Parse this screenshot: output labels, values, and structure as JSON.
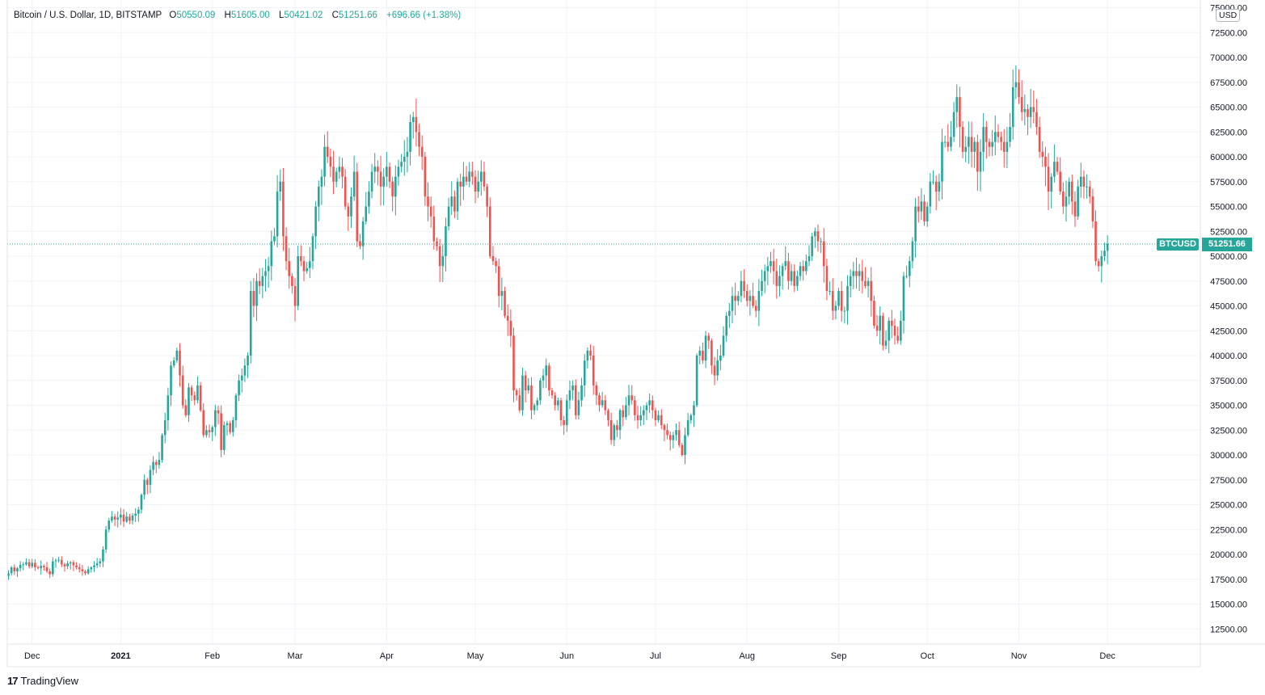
{
  "header": {
    "symbol": "Bitcoin / U.S. Dollar, 1D, BITSTAMP",
    "o_label": "O",
    "o": "50550.09",
    "h_label": "H",
    "h": "51605.00",
    "l_label": "L",
    "l": "50421.02",
    "c_label": "C",
    "c": "51251.66",
    "change": "+696.66 (+1.38%)"
  },
  "currency": "USD",
  "price_tag": {
    "symbol": "BTCUSD",
    "price": "51251.66"
  },
  "brand": {
    "logo": "17",
    "name": "TradingView"
  },
  "colors": {
    "up": "#26a69a",
    "down": "#ef5350",
    "grid": "#f0f3fa",
    "axis_text": "#131722"
  },
  "chart_data": {
    "type": "candlestick",
    "title": "Bitcoin / U.S. Dollar, 1D, BITSTAMP",
    "ylim": [
      10000,
      75000
    ],
    "grid": true,
    "y_ticks": [
      75000,
      72500,
      70000,
      67500,
      65000,
      62500,
      60000,
      57500,
      55000,
      52500,
      50000,
      47500,
      45000,
      42500,
      40000,
      37500,
      35000,
      32500,
      30000,
      27500,
      25000,
      22500,
      20000,
      17500,
      15000,
      12500
    ],
    "x_ticks": [
      {
        "label": "Dec",
        "day": 8
      },
      {
        "label": "2021",
        "day": 38
      },
      {
        "label": "Feb",
        "day": 69
      },
      {
        "label": "Mar",
        "day": 97
      },
      {
        "label": "Apr",
        "day": 128
      },
      {
        "label": "May",
        "day": 158
      },
      {
        "label": "Jun",
        "day": 189
      },
      {
        "label": "Jul",
        "day": 219
      },
      {
        "label": "Aug",
        "day": 250
      },
      {
        "label": "Sep",
        "day": 281
      },
      {
        "label": "Oct",
        "day": 311
      },
      {
        "label": "Nov",
        "day": 342
      },
      {
        "label": "Dec",
        "day": 372
      }
    ],
    "first_date": "2020-11-24",
    "last_close": 51251.66,
    "closes": [
      18100,
      18700,
      18300,
      18600,
      18950,
      19000,
      19200,
      18800,
      19150,
      18700,
      18600,
      18850,
      18700,
      18300,
      18000,
      19300,
      19400,
      19450,
      19000,
      18800,
      19100,
      19200,
      18900,
      18700,
      18500,
      18300,
      18100,
      18500,
      18700,
      18900,
      19100,
      19300,
      20500,
      22500,
      23400,
      23800,
      23500,
      23700,
      24000,
      23300,
      23800,
      23400,
      23900,
      24100,
      24500,
      26000,
      27500,
      27000,
      28500,
      29300,
      29000,
      29500,
      32000,
      33500,
      36000,
      39000,
      39500,
      40500,
      38000,
      35000,
      34000,
      36800,
      36000,
      35500,
      37000,
      34500,
      32000,
      32500,
      32300,
      32800,
      34500,
      34200,
      30500,
      33000,
      33200,
      32300,
      33500,
      36000,
      37500,
      38000,
      39000,
      40000,
      46500,
      45000,
      47500,
      47000,
      48000,
      48500,
      49000,
      51500,
      52000,
      56500,
      57500,
      52000,
      49500,
      48000,
      47000,
      45000,
      50000,
      49500,
      48500,
      48800,
      49500,
      52000,
      55000,
      57000,
      58000,
      61000,
      60000,
      59000,
      57500,
      58500,
      59000,
      58000,
      55000,
      54000,
      56000,
      58500,
      51500,
      51000,
      53500,
      55000,
      56500,
      58500,
      59000,
      58500,
      57000,
      58000,
      59000,
      57500,
      56000,
      58000,
      59000,
      59500,
      60000,
      60500,
      63500,
      64000,
      62500,
      61000,
      60000,
      56000,
      55000,
      54000,
      51500,
      51000,
      49000,
      50000,
      53000,
      55000,
      56000,
      54500,
      57500,
      57000,
      58000,
      57500,
      58500,
      58000,
      56500,
      57500,
      58500,
      57000,
      55000,
      50000,
      49500,
      49000,
      46000,
      46500,
      44000,
      43500,
      42000,
      36500,
      36000,
      34500,
      38000,
      36500,
      37000,
      34500,
      35000,
      35500,
      37500,
      38000,
      39000,
      36500,
      36000,
      35000,
      35500,
      33500,
      33000,
      35500,
      36500,
      37000,
      34000,
      35500,
      37000,
      39500,
      40500,
      40000,
      37000,
      36000,
      35000,
      35500,
      34500,
      33500,
      31500,
      33000,
      32500,
      34500,
      33800,
      35000,
      36000,
      35500,
      34000,
      33500,
      34000,
      34500,
      35000,
      35500,
      34500,
      33500,
      34000,
      33000,
      32500,
      32000,
      31500,
      32000,
      32500,
      31000,
      30000,
      32000,
      33500,
      34000,
      35000,
      40000,
      40500,
      39500,
      42000,
      41500,
      39000,
      38000,
      39500,
      40000,
      42000,
      44000,
      44500,
      46000,
      45500,
      46000,
      47500,
      46500,
      45500,
      46000,
      45000,
      44500,
      46500,
      47500,
      48500,
      49000,
      49500,
      48500,
      47000,
      48000,
      49000,
      49500,
      47500,
      48500,
      47000,
      48000,
      49000,
      48500,
      49500,
      50000,
      52000,
      52500,
      51500,
      51500,
      49000,
      46500,
      46500,
      44500,
      45000,
      46500,
      44500,
      44500,
      47000,
      48000,
      48500,
      48000,
      48500,
      47500,
      47000,
      47500,
      45500,
      43000,
      42500,
      44000,
      41000,
      41500,
      43500,
      43000,
      42000,
      41500,
      43500,
      48000,
      48000,
      49500,
      51500,
      55000,
      54500,
      55500,
      53500,
      55000,
      57500,
      57500,
      56500,
      57500,
      61500,
      61500,
      61000,
      62000,
      64500,
      66000,
      63000,
      60500,
      61000,
      62000,
      60500,
      61500,
      58500,
      60500,
      63000,
      61500,
      61000,
      61500,
      62500,
      62000,
      61500,
      60500,
      61500,
      63000,
      67000,
      67500,
      66000,
      64500,
      64800,
      64000,
      65000,
      64500,
      63000,
      60500,
      60000,
      59000,
      56500,
      58000,
      59500,
      58500,
      56500,
      55000,
      56000,
      57500,
      55500,
      54000,
      57000,
      58000,
      57000,
      57000,
      56000,
      53500,
      49500,
      49000,
      50000,
      50550,
      51251.66
    ]
  }
}
